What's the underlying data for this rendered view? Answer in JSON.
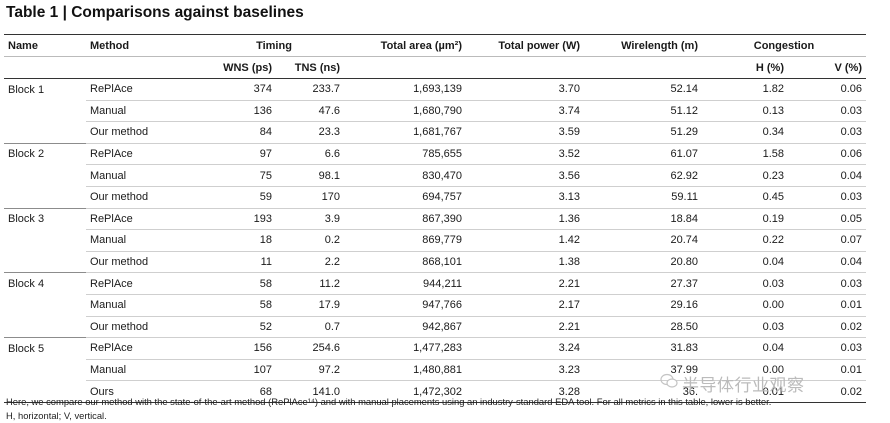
{
  "title": "Table 1 | Comparisons against baselines",
  "headers": {
    "name": "Name",
    "method": "Method",
    "timing": "Timing",
    "total_area": "Total area (µm²)",
    "total_power": "Total power (W)",
    "wirelength": "Wirelength (m)",
    "congestion": "Congestion",
    "wns": "WNS (ps)",
    "tns": "TNS (ns)",
    "h": "H (%)",
    "v": "V (%)"
  },
  "rows": [
    {
      "name": "Block 1",
      "method": "RePlAce",
      "wns": "374",
      "tns": "233.7",
      "area": "1,693,139",
      "power": "3.70",
      "wire": "52.14",
      "h": "1.82",
      "v": "0.06"
    },
    {
      "name": "",
      "method": "Manual",
      "wns": "136",
      "tns": "47.6",
      "area": "1,680,790",
      "power": "3.74",
      "wire": "51.12",
      "h": "0.13",
      "v": "0.03"
    },
    {
      "name": "",
      "method": "Our method",
      "wns": "84",
      "tns": "23.3",
      "area": "1,681,767",
      "power": "3.59",
      "wire": "51.29",
      "h": "0.34",
      "v": "0.03"
    },
    {
      "name": "Block 2",
      "method": "RePlAce",
      "wns": "97",
      "tns": "6.6",
      "area": "785,655",
      "power": "3.52",
      "wire": "61.07",
      "h": "1.58",
      "v": "0.06"
    },
    {
      "name": "",
      "method": "Manual",
      "wns": "75",
      "tns": "98.1",
      "area": "830,470",
      "power": "3.56",
      "wire": "62.92",
      "h": "0.23",
      "v": "0.04"
    },
    {
      "name": "",
      "method": "Our method",
      "wns": "59",
      "tns": "170",
      "area": "694,757",
      "power": "3.13",
      "wire": "59.11",
      "h": "0.45",
      "v": "0.03"
    },
    {
      "name": "Block 3",
      "method": "RePlAce",
      "wns": "193",
      "tns": "3.9",
      "area": "867,390",
      "power": "1.36",
      "wire": "18.84",
      "h": "0.19",
      "v": "0.05"
    },
    {
      "name": "",
      "method": "Manual",
      "wns": "18",
      "tns": "0.2",
      "area": "869,779",
      "power": "1.42",
      "wire": "20.74",
      "h": "0.22",
      "v": "0.07"
    },
    {
      "name": "",
      "method": "Our method",
      "wns": "11",
      "tns": "2.2",
      "area": "868,101",
      "power": "1.38",
      "wire": "20.80",
      "h": "0.04",
      "v": "0.04"
    },
    {
      "name": "Block 4",
      "method": "RePlAce",
      "wns": "58",
      "tns": "11.2",
      "area": "944,211",
      "power": "2.21",
      "wire": "27.37",
      "h": "0.03",
      "v": "0.03"
    },
    {
      "name": "",
      "method": "Manual",
      "wns": "58",
      "tns": "17.9",
      "area": "947,766",
      "power": "2.17",
      "wire": "29.16",
      "h": "0.00",
      "v": "0.01"
    },
    {
      "name": "",
      "method": "Our method",
      "wns": "52",
      "tns": "0.7",
      "area": "942,867",
      "power": "2.21",
      "wire": "28.50",
      "h": "0.03",
      "v": "0.02"
    },
    {
      "name": "Block 5",
      "method": "RePlAce",
      "wns": "156",
      "tns": "254.6",
      "area": "1,477,283",
      "power": "3.24",
      "wire": "31.83",
      "h": "0.04",
      "v": "0.03"
    },
    {
      "name": "",
      "method": "Manual",
      "wns": "107",
      "tns": "97.2",
      "area": "1,480,881",
      "power": "3.23",
      "wire": "37.99",
      "h": "0.00",
      "v": "0.01"
    },
    {
      "name": "",
      "method": "Ours",
      "wns": "68",
      "tns": "141.0",
      "area": "1,472,302",
      "power": "3.28",
      "wire": "36.",
      "h": "0.01",
      "v": "0.02"
    }
  ],
  "footnote": {
    "line1": "Here, we compare our method with the state-of-the-art method (RePlAce¹⁴) and with manual placements using an industry-standard EDA tool. For all metrics in this table, lower is better.",
    "line2": "H, horizontal; V, vertical."
  },
  "watermark": "半导体行业观察"
}
